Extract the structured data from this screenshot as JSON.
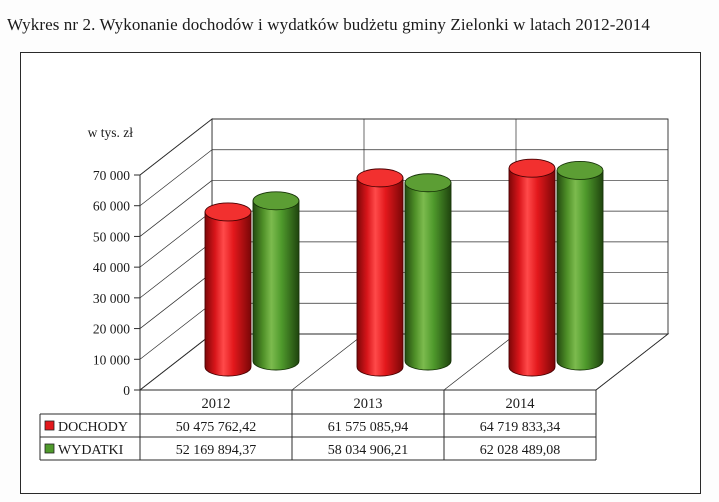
{
  "title": "Wykres nr 2. Wykonanie dochodów i wydatków budżetu gminy Zielonki w latach 2012-2014",
  "chart_data": {
    "type": "bar",
    "ylabel": "w tys. zł",
    "categories": [
      "2012",
      "2013",
      "2014"
    ],
    "ylim": [
      0,
      70000
    ],
    "yticks": [
      0,
      10000,
      20000,
      30000,
      40000,
      50000,
      60000,
      70000
    ],
    "ytick_labels": [
      "0",
      "10 000",
      "20 000",
      "30 000",
      "40 000",
      "50 000",
      "60 000",
      "70 000"
    ],
    "grid": true,
    "legend": "bottom",
    "series": [
      {
        "name": "DOCHODY",
        "color": "#e3181c",
        "values": [
          50475.76,
          61575.09,
          64719.83
        ],
        "table_values": [
          "50 475 762,42",
          "61 575 085,94",
          "64 719 833,34"
        ]
      },
      {
        "name": "WYDATKI",
        "color": "#4f9a2c",
        "values": [
          52169.89,
          58034.91,
          62028.49
        ],
        "table_values": [
          "52 169 894,37",
          "58 034 906,21",
          "62 028 489,08"
        ]
      }
    ]
  }
}
